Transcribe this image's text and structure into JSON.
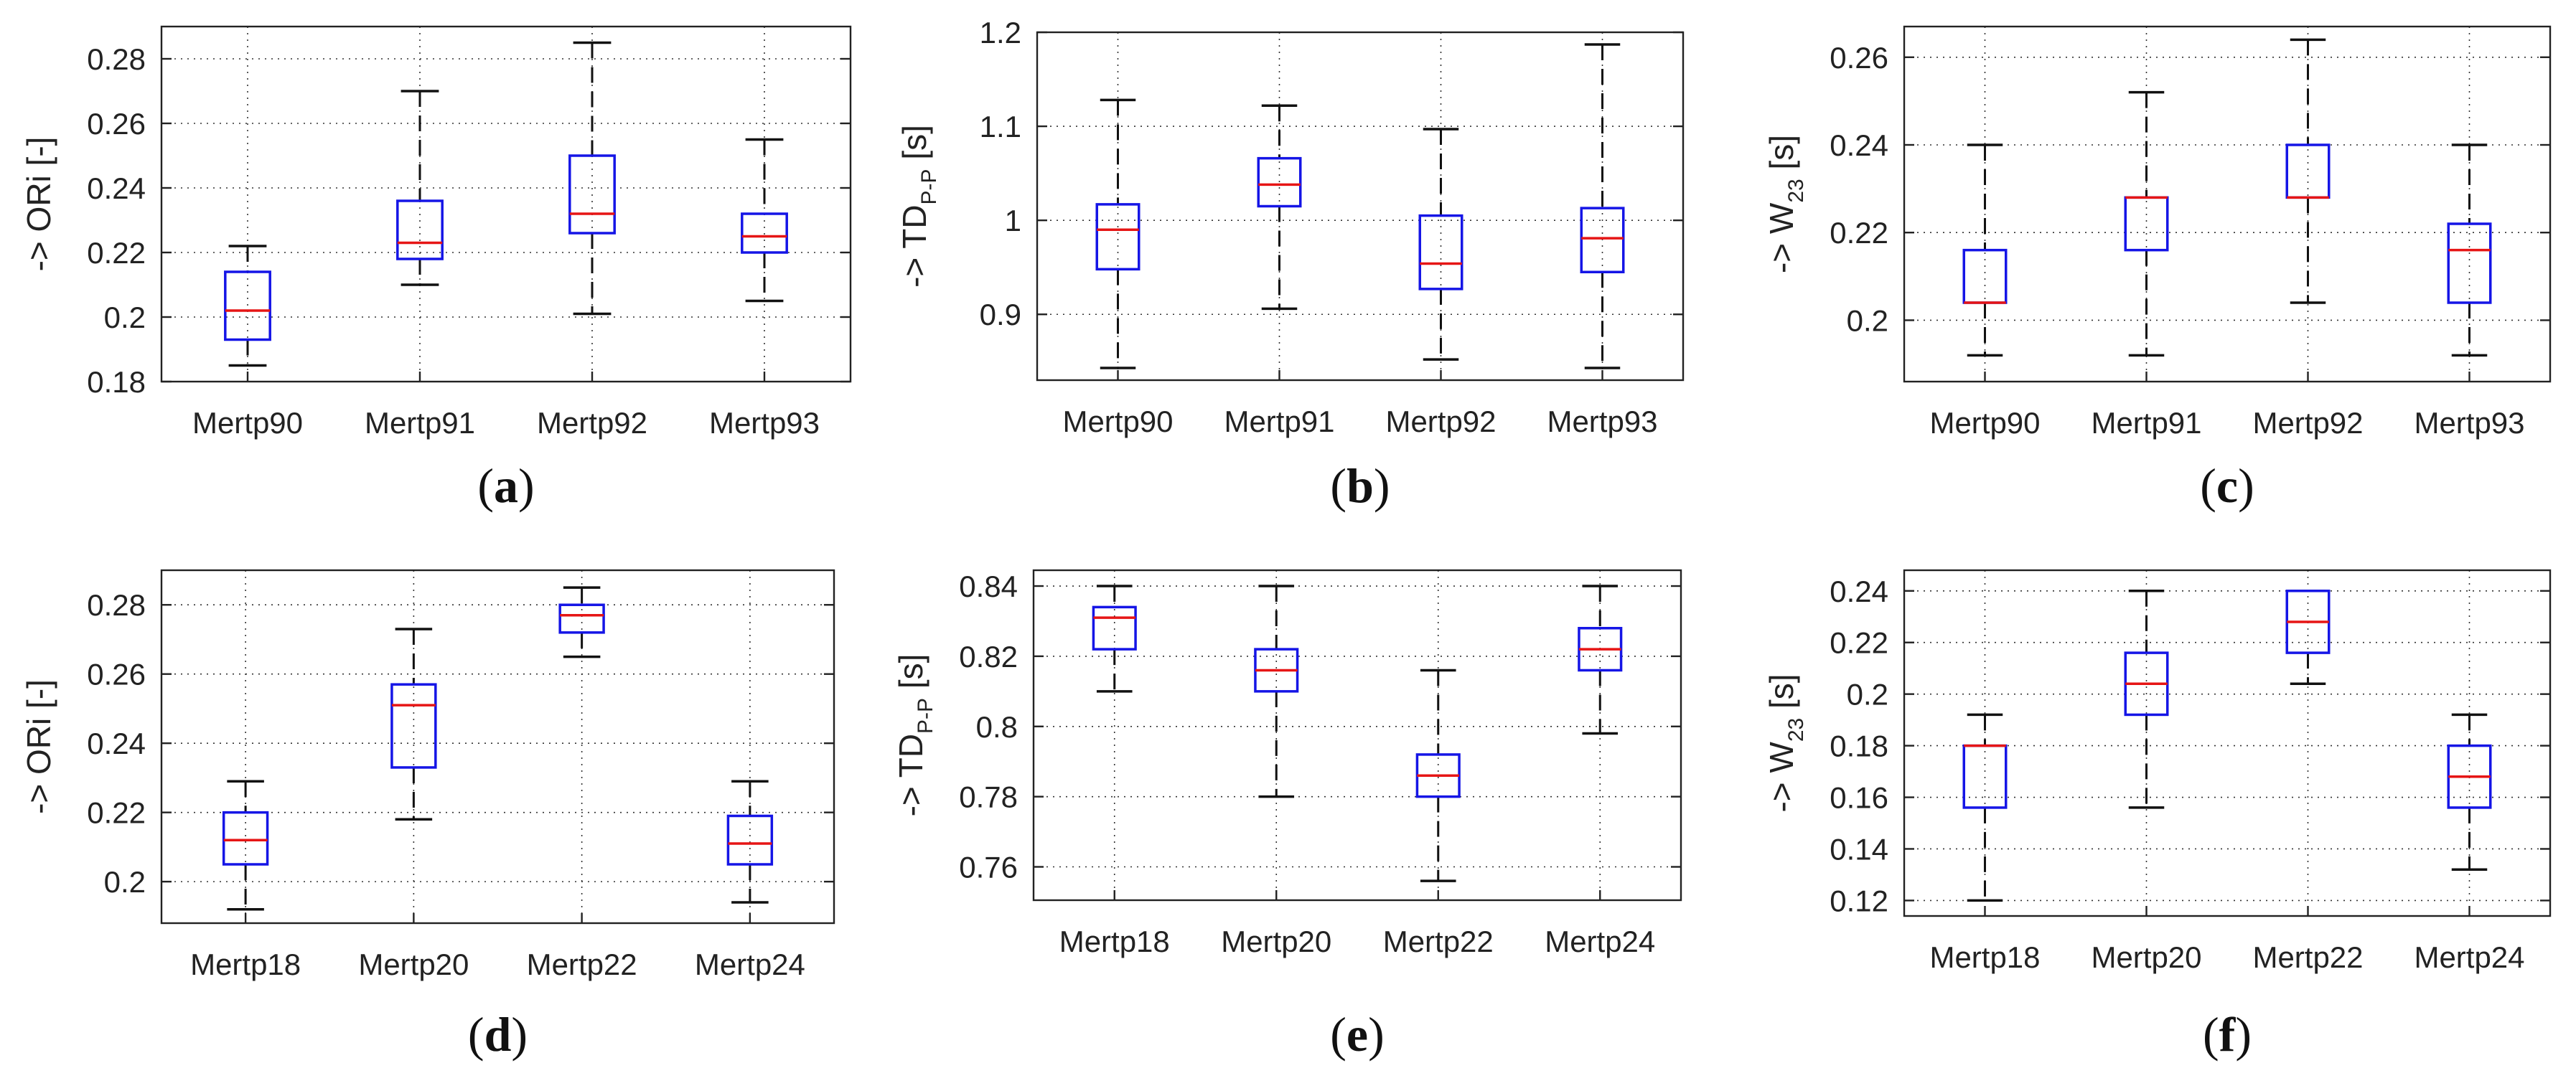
{
  "chart_data": [
    {
      "type": "box",
      "panel": "(a)",
      "ylabel_arrow": "->",
      "ylabel": "ORi [-]",
      "ylabel_sub": "",
      "ylabel_suffix": "",
      "ylim": [
        0.18,
        0.29
      ],
      "yticks": [
        0.18,
        0.2,
        0.22,
        0.24,
        0.26,
        0.28
      ],
      "ytick_labels": [
        "0.18",
        "0.2",
        "0.22",
        "0.24",
        "0.26",
        "0.28"
      ],
      "grid": true,
      "categories": [
        "Mertp90",
        "Mertp91",
        "Mertp92",
        "Mertp93"
      ],
      "boxes": [
        {
          "min": 0.185,
          "q1": 0.193,
          "median": 0.202,
          "q3": 0.214,
          "max": 0.222
        },
        {
          "min": 0.21,
          "q1": 0.218,
          "median": 0.223,
          "q3": 0.236,
          "max": 0.27
        },
        {
          "min": 0.201,
          "q1": 0.226,
          "median": 0.232,
          "q3": 0.25,
          "max": 0.285
        },
        {
          "min": 0.205,
          "q1": 0.22,
          "median": 0.225,
          "q3": 0.232,
          "max": 0.255
        }
      ]
    },
    {
      "type": "box",
      "panel": "(b)",
      "ylabel_arrow": "->",
      "ylabel": "TD",
      "ylabel_sub": "P-P",
      "ylabel_suffix": " [s]",
      "ylim": [
        0.83,
        1.2
      ],
      "yticks": [
        0.9,
        1.0,
        1.1,
        1.2
      ],
      "ytick_labels": [
        "0.9",
        "1",
        "1.1",
        "1.2"
      ],
      "grid": true,
      "categories": [
        "Mertp90",
        "Mertp91",
        "Mertp92",
        "Mertp93"
      ],
      "boxes": [
        {
          "min": 0.843,
          "q1": 0.948,
          "median": 0.99,
          "q3": 1.017,
          "max": 1.128
        },
        {
          "min": 0.906,
          "q1": 1.015,
          "median": 1.038,
          "q3": 1.066,
          "max": 1.122
        },
        {
          "min": 0.852,
          "q1": 0.927,
          "median": 0.954,
          "q3": 1.005,
          "max": 1.097
        },
        {
          "min": 0.843,
          "q1": 0.945,
          "median": 0.981,
          "q3": 1.013,
          "max": 1.187
        }
      ]
    },
    {
      "type": "box",
      "panel": "(c)",
      "ylabel_arrow": "->",
      "ylabel": "W",
      "ylabel_sub": "23",
      "ylabel_suffix": " [s]",
      "ylim": [
        0.186,
        0.267
      ],
      "yticks": [
        0.2,
        0.22,
        0.24,
        0.26
      ],
      "ytick_labels": [
        "0.2",
        "0.22",
        "0.24",
        "0.26"
      ],
      "grid": true,
      "categories": [
        "Mertp90",
        "Mertp91",
        "Mertp92",
        "Mertp93"
      ],
      "boxes": [
        {
          "min": 0.192,
          "q1": 0.204,
          "median": 0.204,
          "q3": 0.216,
          "max": 0.24
        },
        {
          "min": 0.192,
          "q1": 0.216,
          "median": 0.228,
          "q3": 0.228,
          "max": 0.252
        },
        {
          "min": 0.204,
          "q1": 0.228,
          "median": 0.228,
          "q3": 0.24,
          "max": 0.264
        },
        {
          "min": 0.192,
          "q1": 0.204,
          "median": 0.216,
          "q3": 0.222,
          "max": 0.24
        }
      ]
    },
    {
      "type": "box",
      "panel": "(d)",
      "ylabel_arrow": "->",
      "ylabel": "ORi [-]",
      "ylabel_sub": "",
      "ylabel_suffix": "",
      "ylim": [
        0.188,
        0.29
      ],
      "yticks": [
        0.2,
        0.22,
        0.24,
        0.26,
        0.28
      ],
      "ytick_labels": [
        "0.2",
        "0.22",
        "0.24",
        "0.26",
        "0.28"
      ],
      "grid": true,
      "categories": [
        "Mertp18",
        "Mertp20",
        "Mertp22",
        "Mertp24"
      ],
      "boxes": [
        {
          "min": 0.192,
          "q1": 0.205,
          "median": 0.212,
          "q3": 0.22,
          "max": 0.229
        },
        {
          "min": 0.218,
          "q1": 0.233,
          "median": 0.251,
          "q3": 0.257,
          "max": 0.273
        },
        {
          "min": 0.265,
          "q1": 0.272,
          "median": 0.277,
          "q3": 0.28,
          "max": 0.285
        },
        {
          "min": 0.194,
          "q1": 0.205,
          "median": 0.211,
          "q3": 0.219,
          "max": 0.229
        }
      ]
    },
    {
      "type": "box",
      "panel": "(e)",
      "ylabel_arrow": "->",
      "ylabel": "TD",
      "ylabel_sub": "P-P",
      "ylabel_suffix": " [s]",
      "ylim": [
        0.7505,
        0.8445
      ],
      "yticks": [
        0.76,
        0.78,
        0.8,
        0.82,
        0.84
      ],
      "ytick_labels": [
        "0.76",
        "0.78",
        "0.8",
        "0.82",
        "0.84"
      ],
      "grid": true,
      "categories": [
        "Mertp18",
        "Mertp20",
        "Mertp22",
        "Mertp24"
      ],
      "boxes": [
        {
          "min": 0.81,
          "q1": 0.822,
          "median": 0.831,
          "q3": 0.834,
          "max": 0.84
        },
        {
          "min": 0.78,
          "q1": 0.81,
          "median": 0.816,
          "q3": 0.822,
          "max": 0.84
        },
        {
          "min": 0.756,
          "q1": 0.78,
          "median": 0.786,
          "q3": 0.792,
          "max": 0.816
        },
        {
          "min": 0.798,
          "q1": 0.816,
          "median": 0.822,
          "q3": 0.828,
          "max": 0.84
        }
      ]
    },
    {
      "type": "box",
      "panel": "(f)",
      "ylabel_arrow": "->",
      "ylabel": "W",
      "ylabel_sub": "23",
      "ylabel_suffix": " [s]",
      "ylim": [
        0.114,
        0.248
      ],
      "yticks": [
        0.12,
        0.14,
        0.16,
        0.18,
        0.2,
        0.22,
        0.24
      ],
      "ytick_labels": [
        "0.12",
        "0.14",
        "0.16",
        "0.18",
        "0.2",
        "0.22",
        "0.24"
      ],
      "grid": true,
      "categories": [
        "Mertp18",
        "Mertp20",
        "Mertp22",
        "Mertp24"
      ],
      "boxes": [
        {
          "min": 0.12,
          "q1": 0.156,
          "median": 0.18,
          "q3": 0.18,
          "max": 0.192
        },
        {
          "min": 0.156,
          "q1": 0.192,
          "median": 0.204,
          "q3": 0.216,
          "max": 0.24
        },
        {
          "min": 0.204,
          "q1": 0.216,
          "median": 0.228,
          "q3": 0.24,
          "max": 0.24
        },
        {
          "min": 0.132,
          "q1": 0.156,
          "median": 0.168,
          "q3": 0.18,
          "max": 0.192
        }
      ]
    }
  ],
  "colors": {
    "box": "#1515e6",
    "median": "#e61515",
    "whisker": "#111111",
    "axis": "#222222"
  }
}
